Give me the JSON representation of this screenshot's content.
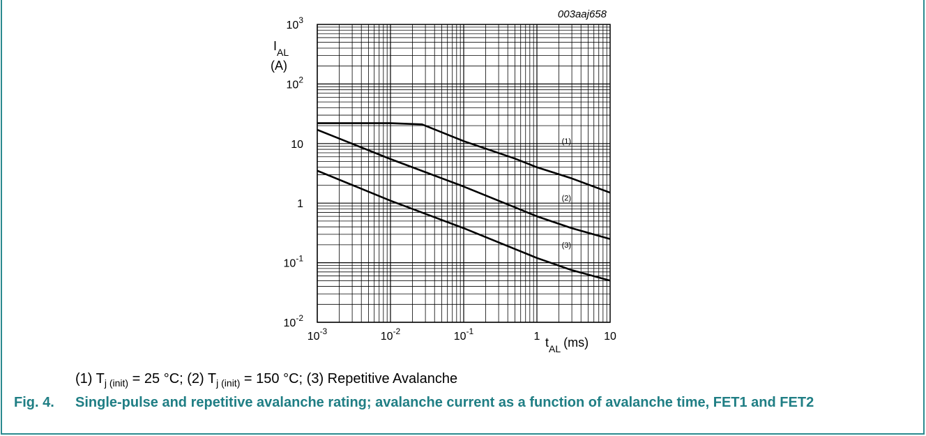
{
  "figure": {
    "code": "003aaj658",
    "number_label": "Fig. 4.",
    "caption": "Single-pulse and repetitive avalanche rating; avalanche current as a function of avalanche time, FET1 and FET2"
  },
  "legend": [
    {
      "marker": "(1)",
      "symbol": "T",
      "sub": "j (init)",
      "rest": " = 25 °C;"
    },
    {
      "marker": "(2)",
      "symbol": "T",
      "sub": "j (init)",
      "rest": " = 150 °C;"
    },
    {
      "marker": "(3)",
      "text": "Repetitive Avalanche"
    }
  ],
  "colors": {
    "accent": "#1f7e84",
    "frame": "#2a8a8f",
    "curve": "#000000"
  },
  "chart_data": {
    "type": "line",
    "xscale": "log",
    "yscale": "log",
    "xlim": [
      0.001,
      10
    ],
    "ylim": [
      0.01,
      1000
    ],
    "grid": true,
    "xlabel": {
      "symbol": "t",
      "sub": "AL",
      "unit": "(ms)"
    },
    "ylabel": {
      "symbol": "I",
      "sub": "AL",
      "unit": "(A)"
    },
    "xticks": [
      {
        "base": "10",
        "exp": "-3"
      },
      {
        "base": "10",
        "exp": "-2"
      },
      {
        "base": "10",
        "exp": "-1"
      },
      {
        "base": "1",
        "exp": ""
      },
      {
        "base": "10",
        "exp": ""
      }
    ],
    "yticks": [
      {
        "base": "10",
        "exp": "-2"
      },
      {
        "base": "10",
        "exp": "-1"
      },
      {
        "base": "1",
        "exp": ""
      },
      {
        "base": "10",
        "exp": ""
      },
      {
        "base": "10",
        "exp": "2"
      },
      {
        "base": "10",
        "exp": "3"
      }
    ],
    "series": [
      {
        "name": "(1)",
        "x": [
          0.001,
          0.01,
          0.027,
          0.1,
          0.5,
          1,
          3,
          10
        ],
        "y": [
          22,
          22,
          21,
          11,
          5.6,
          4,
          2.6,
          1.5
        ]
      },
      {
        "name": "(2)",
        "x": [
          0.001,
          0.01,
          0.1,
          0.5,
          1,
          3,
          10
        ],
        "y": [
          17,
          5.5,
          1.9,
          0.85,
          0.6,
          0.38,
          0.25
        ]
      },
      {
        "name": "(3)",
        "x": [
          0.001,
          0.01,
          0.1,
          0.5,
          1,
          3,
          10
        ],
        "y": [
          3.5,
          1.1,
          0.38,
          0.17,
          0.12,
          0.075,
          0.05
        ]
      }
    ]
  }
}
